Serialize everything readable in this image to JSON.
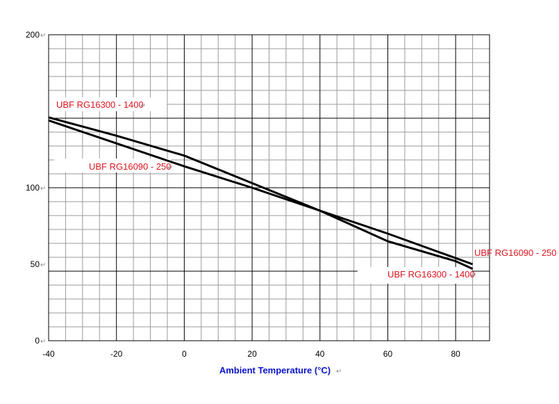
{
  "chart_data": {
    "type": "line",
    "title": "",
    "xlabel": "Ambient Temperature (°C)",
    "ylabel": "",
    "xlim": [
      -40,
      90
    ],
    "ylim": [
      0,
      200
    ],
    "x_ticks": [
      "-40",
      "-20",
      "0",
      "20",
      "40",
      "60",
      "80"
    ],
    "y_ticks": [
      "0",
      "50",
      "100",
      "200"
    ],
    "grid": true,
    "colors": {
      "line": "#000000",
      "label": "#e0141e",
      "xlabel": "#0a14c8",
      "grid": "#000000"
    },
    "series": [
      {
        "name": "UBF RG16300 - 1400",
        "x": [
          -40,
          -20,
          0,
          20,
          40,
          60,
          80,
          85
        ],
        "y": [
          146,
          134,
          121,
          103,
          85,
          65,
          52,
          47
        ]
      },
      {
        "name": "UBF RG16090 - 250",
        "x": [
          -40,
          -20,
          0,
          20,
          40,
          60,
          80,
          85
        ],
        "y": [
          144,
          129,
          114,
          100,
          85,
          70,
          54,
          50
        ]
      }
    ]
  }
}
